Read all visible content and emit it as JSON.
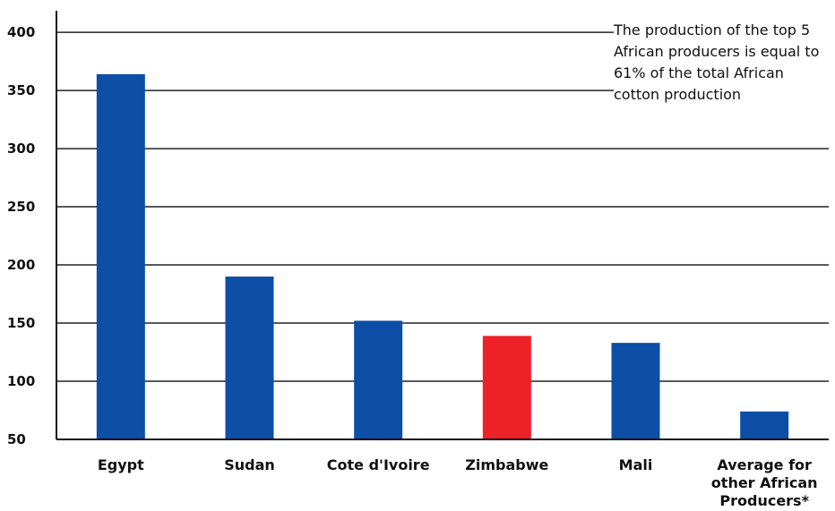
{
  "chart_data": {
    "type": "bar",
    "categories": [
      "Egypt",
      "Sudan",
      "Cote d'Ivoire",
      "Zimbabwe",
      "Mali",
      "Average for other African Producers*"
    ],
    "category_lines": [
      [
        "Egypt"
      ],
      [
        "Sudan"
      ],
      [
        "Cote d'Ivoire"
      ],
      [
        "Zimbabwe"
      ],
      [
        "Mali"
      ],
      [
        "Average for",
        "other African",
        "Producers*"
      ]
    ],
    "values": [
      364,
      190,
      152,
      139,
      133,
      74
    ],
    "bar_colors": [
      "#0d4ea6",
      "#0d4ea6",
      "#0d4ea6",
      "#ee2028",
      "#0d4ea6",
      "#0d4ea6"
    ],
    "y_tick_labels": [
      "400",
      "350",
      "300",
      "250",
      "200",
      "150",
      "100",
      "50"
    ],
    "y_grid_values": [
      400,
      350,
      300,
      250,
      200,
      150,
      100,
      50
    ],
    "ylim": [
      50,
      417
    ],
    "title": "",
    "xlabel": "",
    "ylabel": "",
    "grid": true,
    "annotation": "The production of the top 5 African producers is equal to 61% of the total African cotton production"
  }
}
